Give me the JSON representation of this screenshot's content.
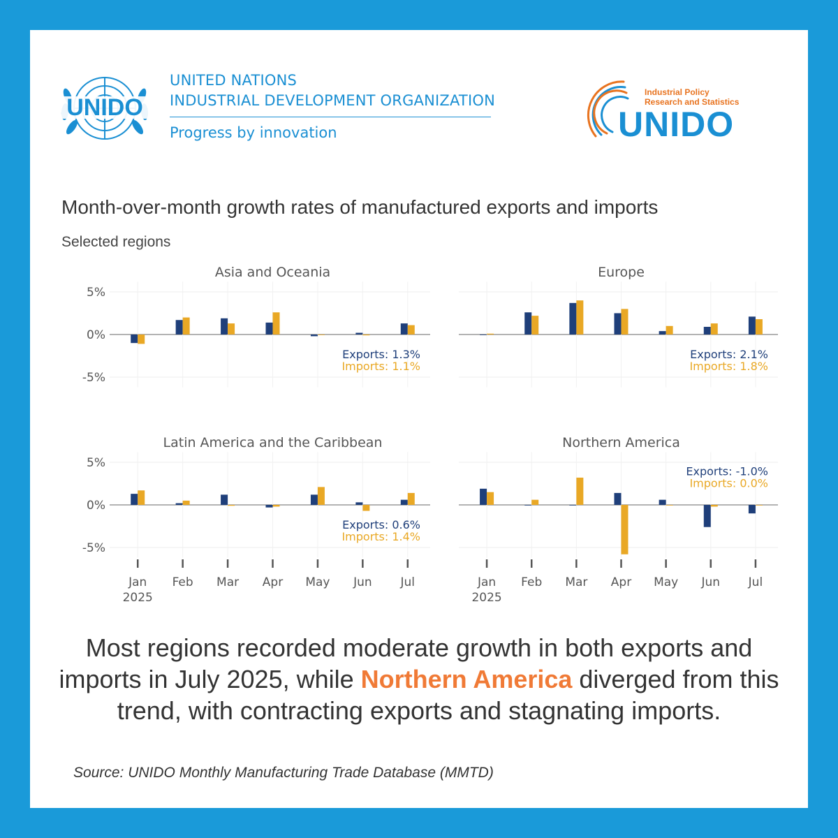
{
  "branding": {
    "emblem_text": "UNIDO",
    "org_line1": "UNITED NATIONS",
    "org_line2": "INDUSTRIAL DEVELOPMENT ORGANIZATION",
    "tagline": "Progress by innovation",
    "ips_line1": "Industrial Policy",
    "ips_line2": "Research and Statistics",
    "ips_name": "UNIDO",
    "colors": {
      "brand_blue": "#1a8fd3",
      "frame_blue": "#1a9ad9",
      "ips_orange": "#e8731f"
    }
  },
  "summary": {
    "part1": "Most regions recorded moderate growth in both exports and imports in July 2025, while ",
    "highlight": "Northern America",
    "part2": " diverged from this trend, with contracting exports and stagnating imports."
  },
  "source": "Source: UNIDO Monthly Manufacturing Trade Database (MMTD)",
  "chart_data": {
    "type": "bar",
    "title": "Month-over-month growth rates of manufactured exports and imports",
    "subtitle": "Selected regions",
    "categories": [
      "Jan",
      "Feb",
      "Mar",
      "Apr",
      "May",
      "Jun",
      "Jul"
    ],
    "year_label": "2025",
    "y_ticks": [
      "5%",
      "0%",
      "-5%"
    ],
    "ylim": [
      -6.5,
      6.5
    ],
    "grid": true,
    "colors": {
      "Exports": "#1f3f7a",
      "Imports": "#e9a825"
    },
    "panels": [
      {
        "title": "Asia and Oceania",
        "annotation_position": "bottom-right",
        "exports_label": "Exports: 1.3%",
        "imports_label": "Imports: 1.1%",
        "series": [
          {
            "name": "Exports",
            "values": [
              -1.0,
              1.7,
              1.9,
              1.4,
              -0.2,
              0.2,
              1.3
            ]
          },
          {
            "name": "Imports",
            "values": [
              -1.1,
              2.0,
              1.3,
              2.6,
              0.0,
              -0.1,
              1.1
            ]
          }
        ]
      },
      {
        "title": "Europe",
        "annotation_position": "bottom-right",
        "exports_label": "Exports: 2.1%",
        "imports_label": "Imports: 1.8%",
        "series": [
          {
            "name": "Exports",
            "values": [
              0.0,
              2.6,
              3.7,
              2.5,
              0.4,
              0.9,
              2.1
            ]
          },
          {
            "name": "Imports",
            "values": [
              0.1,
              2.2,
              4.0,
              3.0,
              1.0,
              1.3,
              1.8
            ]
          }
        ]
      },
      {
        "title": "Latin America and the Caribbean",
        "annotation_position": "bottom-right",
        "exports_label": "Exports: 0.6%",
        "imports_label": "Imports: 1.4%",
        "series": [
          {
            "name": "Exports",
            "values": [
              1.3,
              0.2,
              1.2,
              -0.3,
              1.2,
              0.3,
              0.6
            ]
          },
          {
            "name": "Imports",
            "values": [
              1.7,
              0.5,
              -0.1,
              -0.2,
              2.1,
              -0.7,
              1.4
            ]
          }
        ]
      },
      {
        "title": "Northern America",
        "annotation_position": "top-right",
        "exports_label": "Exports: -1.0%",
        "imports_label": "Imports: 0.0%",
        "series": [
          {
            "name": "Exports",
            "values": [
              1.9,
              0.0,
              0.0,
              1.4,
              0.6,
              -2.6,
              -1.0
            ]
          },
          {
            "name": "Imports",
            "values": [
              1.5,
              0.6,
              3.2,
              -5.8,
              0.0,
              -0.2,
              0.0
            ]
          }
        ]
      }
    ]
  }
}
